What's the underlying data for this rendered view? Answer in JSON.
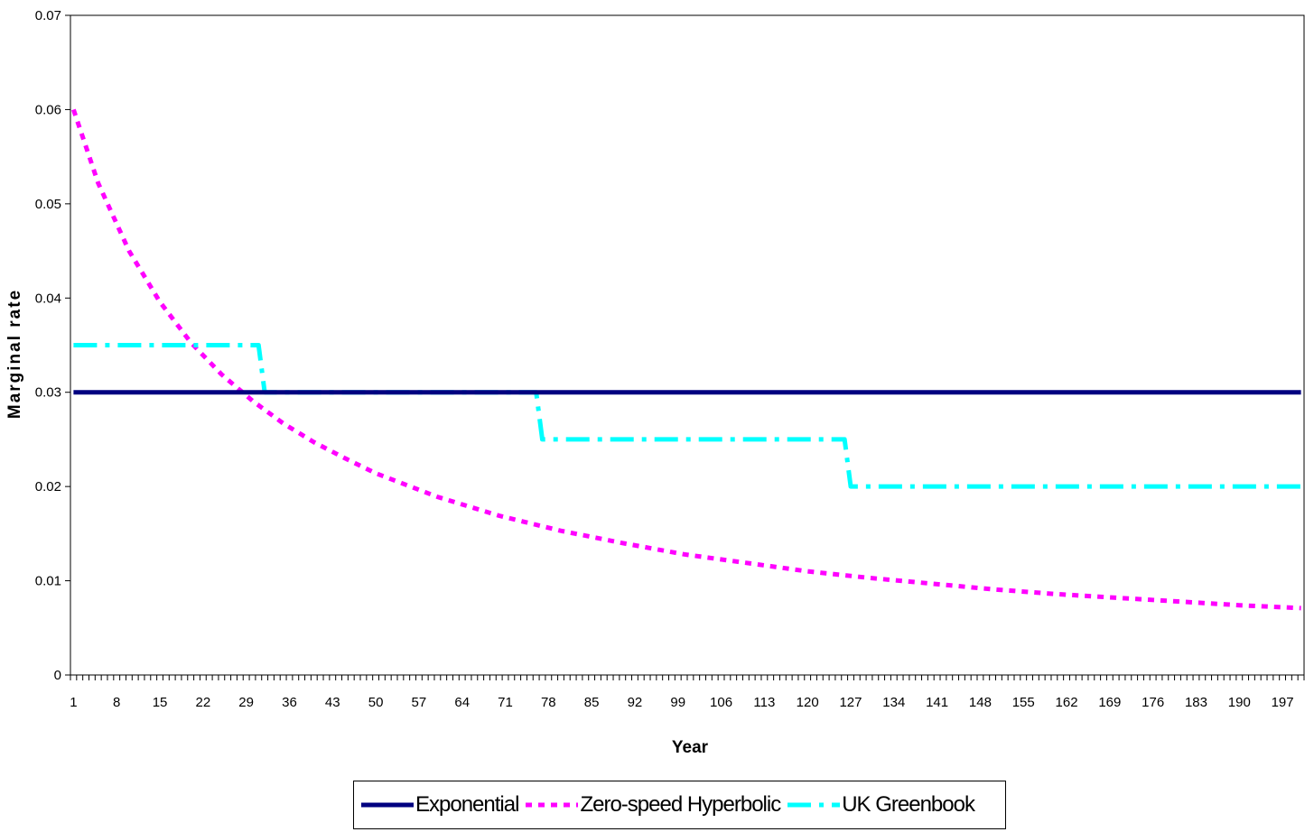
{
  "chart_data": {
    "type": "line",
    "title": "",
    "xlabel": "Year",
    "ylabel": "Marginal rate",
    "xlim": [
      1,
      200
    ],
    "ylim": [
      0,
      0.07
    ],
    "x_tick_labels": [
      "1",
      "8",
      "15",
      "22",
      "29",
      "36",
      "43",
      "50",
      "57",
      "64",
      "71",
      "78",
      "85",
      "92",
      "99",
      "106",
      "113",
      "120",
      "127",
      "134",
      "141",
      "148",
      "155",
      "162",
      "169",
      "176",
      "183",
      "190",
      "197"
    ],
    "y_tick_labels": [
      "0",
      "0.01",
      "0.02",
      "0.03",
      "0.04",
      "0.05",
      "0.06",
      "0.07"
    ],
    "y_ticks": [
      0,
      0.01,
      0.02,
      0.03,
      0.04,
      0.05,
      0.06,
      0.07
    ],
    "grid": false,
    "legend_position": "bottom",
    "series": [
      {
        "name": "Exponential",
        "color": "#000080",
        "style": "solid",
        "x": [
          1,
          200
        ],
        "y": [
          0.03,
          0.03
        ]
      },
      {
        "name": "Zero-speed Hyperbolic",
        "color": "#FF00FF",
        "style": "dotted",
        "x": [
          1,
          5,
          10,
          15,
          20,
          25,
          30,
          35,
          40,
          45,
          50,
          60,
          70,
          80,
          90,
          100,
          110,
          120,
          130,
          140,
          150,
          160,
          170,
          180,
          190,
          200
        ],
        "y": [
          0.06,
          0.0522,
          0.045,
          0.0396,
          0.0353,
          0.0319,
          0.0291,
          0.0267,
          0.0247,
          0.023,
          0.0214,
          0.0189,
          0.0169,
          0.0153,
          0.014,
          0.0128,
          0.0119,
          0.011,
          0.0103,
          0.0097,
          0.0091,
          0.0086,
          0.0082,
          0.0078,
          0.0074,
          0.0071
        ]
      },
      {
        "name": "UK Greenbook",
        "color": "#00FFFF",
        "style": "dashdot",
        "x": [
          1,
          31,
          32,
          76,
          77,
          126,
          127,
          200
        ],
        "y": [
          0.035,
          0.035,
          0.03,
          0.03,
          0.025,
          0.025,
          0.02,
          0.02
        ]
      }
    ]
  }
}
